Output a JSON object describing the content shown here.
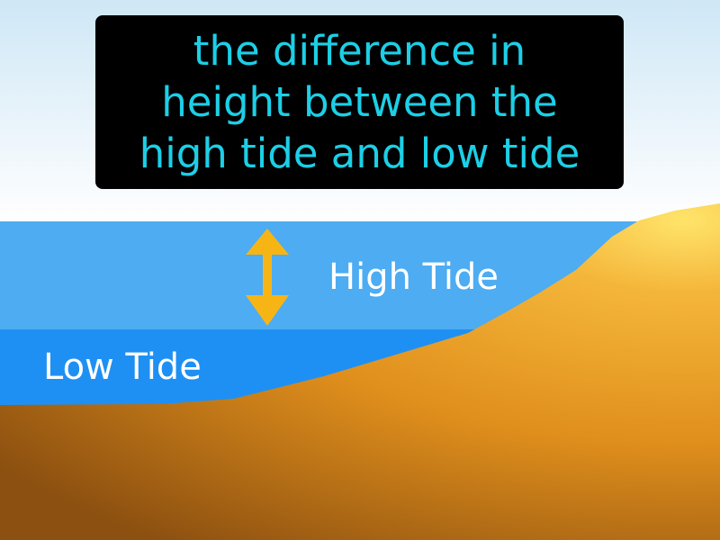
{
  "definition": {
    "lines": [
      "the difference in",
      "height between the",
      "high tide and low tide"
    ]
  },
  "labels": {
    "high_tide": "High Tide",
    "low_tide": "Low Tide"
  },
  "colors": {
    "sky_top": "#cfe7f6",
    "sky_bottom": "#ffffff",
    "high_water": "#4dacf2",
    "low_water": "#1f90f3",
    "sand_light": "#ffd75a",
    "sand_mid": "#e59a22",
    "sand_dark": "#9b5a10",
    "arrow": "#f7b515",
    "caption_text": "#1ccfe6",
    "caption_bg": "#000000"
  },
  "icons": {
    "range_arrow": "double-headed-vertical-arrow"
  }
}
